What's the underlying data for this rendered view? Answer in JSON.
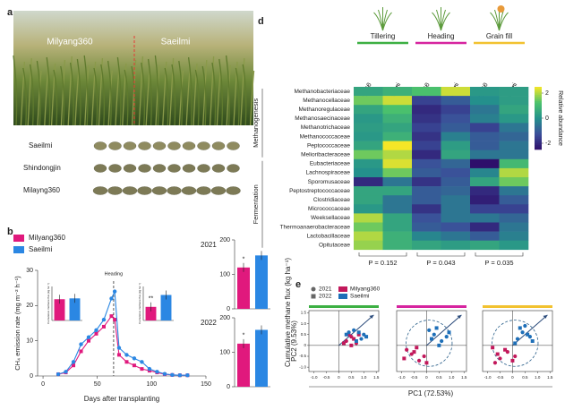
{
  "panel_labels": [
    "a",
    "b",
    "d",
    "e"
  ],
  "photo": {
    "labels": [
      "Milyang360",
      "Saeilmi"
    ],
    "grain_rows": [
      "Saeilmi",
      "Shindongjin",
      "Milayng360"
    ]
  },
  "chart_data": [
    {
      "type": "line",
      "xlabel": "Days after transplanting",
      "ylabel": "CH₄ emission rate (mg m⁻² h⁻¹)",
      "x": [
        14,
        21,
        28,
        35,
        42,
        49,
        56,
        63,
        66,
        70,
        77,
        84,
        91,
        98,
        105,
        112,
        119,
        126,
        133
      ],
      "xlim": [
        -5,
        150
      ],
      "xticks": [
        0,
        50,
        100,
        150
      ],
      "ylim": [
        0,
        30
      ],
      "yticks": [
        0,
        10,
        20,
        30
      ],
      "annotations": [
        {
          "text": "Heading",
          "x": 65
        }
      ],
      "series": [
        {
          "name": "Milyang360",
          "color": "#e0197d",
          "marker": "square",
          "values": [
            0.5,
            1,
            3,
            7,
            10,
            12,
            14,
            17,
            16,
            6,
            4,
            3,
            2,
            1.5,
            1,
            0.5,
            0.3,
            0.2,
            0.2
          ]
        },
        {
          "name": "Saeilmi",
          "color": "#2b87e3",
          "marker": "circle",
          "values": [
            0.5,
            1.2,
            4,
            9,
            11,
            13,
            16,
            22,
            24,
            8,
            6,
            5,
            4,
            2,
            1.2,
            0.6,
            0.3,
            0.2,
            0.2
          ]
        }
      ]
    },
    {
      "type": "bar",
      "ylabel": "Cumulative methane flux (kg ha⁻¹)",
      "values": [
        125,
        130
      ],
      "colors": [
        "#e0197d",
        "#2b87e3"
      ],
      "ylim": [
        0,
        200
      ]
    },
    {
      "type": "bar",
      "ylabel": "Cumulative methane flux (kg ha⁻¹)",
      "values": [
        80,
        150
      ],
      "colors": [
        "#e0197d",
        "#2b87e3"
      ],
      "ylim": [
        0,
        200
      ],
      "annotation": "**"
    },
    {
      "type": "bar",
      "title": "2021",
      "ylabel": "Cumulative methane flux (kg ha⁻¹)",
      "values": [
        120,
        155
      ],
      "colors": [
        "#e0197d",
        "#2b87e3"
      ],
      "ylim": [
        0,
        200
      ],
      "yticks": [
        0,
        100,
        200
      ],
      "annotation": "*"
    },
    {
      "type": "bar",
      "title": "2022",
      "values": [
        125,
        165
      ],
      "colors": [
        "#e0197d",
        "#2b87e3"
      ],
      "ylim": [
        0,
        200
      ],
      "yticks": [
        0,
        100,
        200
      ],
      "annotation": "*"
    },
    {
      "type": "heatmap",
      "stages": [
        {
          "name": "Tillering",
          "color": "#3cb043"
        },
        {
          "name": "Heading",
          "color": "#d6249f"
        },
        {
          "name": "Grain fill",
          "color": "#f2c230"
        }
      ],
      "columns": [
        "Milyang360",
        "Saeilmi",
        "Milyang360",
        "Saeilmi",
        "Milyang360",
        "Saeilmi"
      ],
      "groups": [
        {
          "name": "Methanogenesis",
          "rows": 8
        },
        {
          "name": "Fermentation",
          "rows": 10
        }
      ],
      "rows": [
        "Methanobacteriaceae",
        "Methanocellaceae",
        "Methanoregulaceae",
        "Methanosaecinaceae",
        "Methanotrichaceae",
        "Methanococcaceae",
        "Peptococcaceae",
        "Melioribacteraceae",
        "Eubacteriaceae",
        "Lachnospiraceae",
        "Sporomusaceae",
        "Peptostreptococcaceae",
        "Clostridiaceae",
        "Micrococcaceae",
        "Weeksellaceae",
        "Thermoanaerobacteraceae",
        "Lactobacillaceae",
        "Opitutaceae"
      ],
      "values": [
        [
          0.5,
          0.8,
          1.2,
          2.2,
          0.2,
          0.3
        ],
        [
          1.5,
          2.2,
          -1.5,
          -1.0,
          0,
          0.3
        ],
        [
          0.5,
          1.2,
          -2.0,
          -1.5,
          -0.5,
          0.5
        ],
        [
          0.2,
          0.8,
          -1.8,
          -1.2,
          -0.3,
          0.2
        ],
        [
          0.3,
          0.5,
          -1.5,
          -1.0,
          -1.5,
          -0.5
        ],
        [
          0.2,
          0.8,
          -1.8,
          -0.3,
          -1.0,
          -0.8
        ],
        [
          0.5,
          2.5,
          -1.5,
          0.3,
          -1.0,
          -0.5
        ],
        [
          1.5,
          2.0,
          -2.0,
          0.5,
          -0.5,
          -0.5
        ],
        [
          0.2,
          2.3,
          -1.2,
          -0.8,
          -2.5,
          1.0
        ],
        [
          0,
          1.5,
          -1.0,
          -1.2,
          -0.2,
          2.0
        ],
        [
          -2.0,
          -0.5,
          -1.8,
          -1.0,
          0.5,
          1.5
        ],
        [
          0.5,
          0.5,
          -1.0,
          -0.8,
          -2.0,
          -0.5
        ],
        [
          0.5,
          -0.5,
          -1.0,
          -0.5,
          -2.2,
          -1.0
        ],
        [
          0.2,
          -0.5,
          -1.8,
          -0.5,
          -1.5,
          -1.5
        ],
        [
          2.0,
          0.5,
          -1.2,
          -0.5,
          -0.5,
          -0.8
        ],
        [
          1.5,
          0.5,
          -1.0,
          -1.2,
          -2.0,
          -0.5
        ],
        [
          2.0,
          0.8,
          -0.2,
          -0.5,
          -1.0,
          -0.3
        ],
        [
          1.8,
          0.8,
          0.5,
          0.3,
          0.5,
          0.2
        ]
      ],
      "zlim": [
        -2.5,
        2.5
      ],
      "colorbar_ticks": [
        2,
        0,
        -2
      ],
      "colorbar_label": "Relative abundance",
      "colormap": [
        "#2e0f6b",
        "#3b4f9a",
        "#24908c",
        "#4cc26c",
        "#f5e627"
      ],
      "p_values": [
        "P = 0.152",
        "P = 0.043",
        "P = 0.035"
      ]
    },
    {
      "type": "scatter",
      "xlabel": "PC1 (72.53%)",
      "ylabel": "PC2 (9.53%)",
      "xlim": [
        -1.2,
        1.6
      ],
      "ylim": [
        -1.2,
        1.6
      ],
      "xticks": [
        {
          "value": -1,
          "label": "-1.0"
        },
        -0.5,
        0,
        0.5,
        {
          "value": 1,
          "label": "1.0"
        },
        1.5
      ],
      "yticks": [
        {
          "value": -1,
          "label": "-1.0"
        },
        -0.5,
        0,
        0.5,
        {
          "value": 1,
          "label": "1.0"
        },
        1.5
      ],
      "panels": [
        {
          "color": "#3cb043",
          "series": [
            {
              "name": "Milyang360",
              "year": "2021",
              "color": "#c2185b",
              "x": [
                0.3,
                0.5,
                0.7,
                0.4
              ],
              "y": [
                0.2,
                0.4,
                0.1,
                0.5
              ]
            },
            {
              "name": "Milyang360",
              "year": "2022",
              "color": "#c2185b",
              "x": [
                0.6,
                0.2,
                0.8,
                0.5
              ],
              "y": [
                0.3,
                0.1,
                0.5,
                0.0
              ]
            },
            {
              "name": "Saeilmi",
              "year": "2021",
              "color": "#1e6fb8",
              "x": [
                0.4,
                0.9,
                0.6,
                1.0
              ],
              "y": [
                0.6,
                0.3,
                0.7,
                0.5
              ]
            },
            {
              "name": "Saeilmi",
              "year": "2022",
              "color": "#1e6fb8",
              "x": [
                0.7,
                0.3,
                1.1,
                0.8
              ],
              "y": [
                0.2,
                0.5,
                0.4,
                0.6
              ]
            }
          ]
        },
        {
          "color": "#d6249f",
          "series": [
            {
              "name": "Milyang360",
              "year": "2021",
              "color": "#c2185b",
              "x": [
                -0.6,
                -0.3,
                -0.8,
                -0.1
              ],
              "y": [
                -0.4,
                -0.7,
                -0.2,
                -0.5
              ]
            },
            {
              "name": "Milyang360",
              "year": "2022",
              "color": "#c2185b",
              "x": [
                -0.4,
                -0.9,
                0.0,
                -0.5
              ],
              "y": [
                -0.1,
                -0.6,
                -0.8,
                -0.3
              ]
            },
            {
              "name": "Saeilmi",
              "year": "2021",
              "color": "#1e6fb8",
              "x": [
                0.3,
                0.6,
                0.1,
                0.8
              ],
              "y": [
                0.5,
                0.2,
                0.7,
                0.4
              ]
            },
            {
              "name": "Saeilmi",
              "year": "2022",
              "color": "#1e6fb8",
              "x": [
                0.5,
                0.9,
                0.2,
                0.4
              ],
              "y": [
                0.0,
                0.6,
                0.3,
                0.8
              ]
            }
          ]
        },
        {
          "color": "#f2c230",
          "series": [
            {
              "name": "Milyang360",
              "year": "2021",
              "color": "#c2185b",
              "x": [
                -0.5,
                -0.2,
                -0.7,
                0.1
              ],
              "y": [
                -0.6,
                -0.3,
                -0.8,
                -0.5
              ]
            },
            {
              "name": "Milyang360",
              "year": "2022",
              "color": "#c2185b",
              "x": [
                -0.3,
                -0.6,
                0.0,
                -0.8
              ],
              "y": [
                -0.2,
                -0.4,
                -0.7,
                -0.1
              ]
            },
            {
              "name": "Saeilmi",
              "year": "2021",
              "color": "#1e6fb8",
              "x": [
                0.4,
                0.2,
                0.7,
                0.5
              ],
              "y": [
                0.6,
                0.3,
                0.4,
                0.9
              ]
            },
            {
              "name": "Saeilmi",
              "year": "2022",
              "color": "#1e6fb8",
              "x": [
                0.1,
                0.6,
                0.3,
                0.8
              ],
              "y": [
                0.1,
                0.5,
                0.8,
                0.2
              ]
            }
          ]
        }
      ]
    }
  ]
}
